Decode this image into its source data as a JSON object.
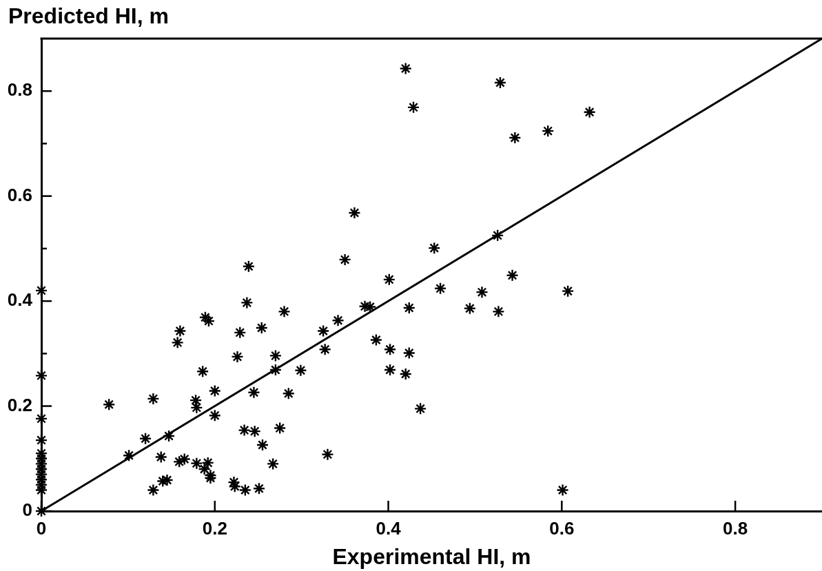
{
  "chart_data": {
    "type": "scatter",
    "xlabel": "Experimental HI, m",
    "ylabel": "Predicted HI, m",
    "xlim": [
      0,
      0.9
    ],
    "ylim": [
      0,
      0.9
    ],
    "xticks": [
      0,
      0.2,
      0.4,
      0.6,
      0.8
    ],
    "yticks": [
      0,
      {
        "value": 0.1,
        "label": null
      },
      0.2,
      {
        "value": 0.3,
        "label": null
      },
      0.4,
      {
        "value": 0.5,
        "label": null
      },
      0.6,
      {
        "value": 0.7,
        "label": null
      },
      0.8
    ],
    "grid": false,
    "legend": false,
    "marker": "cross",
    "series": [
      {
        "type": "scatter",
        "color": "#000000",
        "x": [
          0,
          0,
          0,
          0,
          0,
          0,
          0,
          0,
          0,
          0,
          0,
          0,
          0,
          0.078,
          0.101,
          0.12,
          0.129,
          0.129,
          0.138,
          0.14,
          0.145,
          0.147,
          0.157,
          0.16,
          0.159,
          0.165,
          0.178,
          0.179,
          0.179,
          0.186,
          0.188,
          0.189,
          0.193,
          0.192,
          0.195,
          0.195,
          0.2,
          0.2,
          0.222,
          0.223,
          0.226,
          0.229,
          0.234,
          0.235,
          0.237,
          0.239,
          0.245,
          0.246,
          0.251,
          0.254,
          0.255,
          0.267,
          0.27,
          0.27,
          0.275,
          0.28,
          0.285,
          0.299,
          0.325,
          0.327,
          0.33,
          0.342,
          0.35,
          0.361,
          0.373,
          0.379,
          0.386,
          0.401,
          0.402,
          0.402,
          0.42,
          0.42,
          0.424,
          0.424,
          0.429,
          0.437,
          0.453,
          0.46,
          0.494,
          0.508,
          0.526,
          0.529,
          0.527,
          0.543,
          0.546,
          0.584,
          0.601,
          0.607,
          0.632
        ],
        "values": [
          0.42,
          0.258,
          0.176,
          0.135,
          0.11,
          0.1,
          0.09,
          0.08,
          0.07,
          0.06,
          0.05,
          0.04,
          0,
          0.203,
          0.106,
          0.138,
          0.214,
          0.04,
          0.103,
          0.057,
          0.059,
          0.143,
          0.321,
          0.343,
          0.094,
          0.099,
          0.211,
          0.197,
          0.091,
          0.266,
          0.08,
          0.369,
          0.362,
          0.092,
          0.068,
          0.063,
          0.229,
          0.182,
          0.055,
          0.047,
          0.294,
          0.34,
          0.154,
          0.04,
          0.397,
          0.466,
          0.226,
          0.152,
          0.043,
          0.349,
          0.126,
          0.09,
          0.296,
          0.269,
          0.158,
          0.38,
          0.224,
          0.268,
          0.343,
          0.308,
          0.108,
          0.363,
          0.479,
          0.568,
          0.39,
          0.389,
          0.326,
          0.441,
          0.308,
          0.269,
          0.261,
          0.843,
          0.387,
          0.301,
          0.769,
          0.195,
          0.501,
          0.424,
          0.386,
          0.417,
          0.525,
          0.816,
          0.38,
          0.449,
          0.711,
          0.724,
          0.04,
          0.419,
          0.76
        ]
      },
      {
        "type": "line",
        "color": "#000000",
        "marker": "none",
        "line_style": "solid",
        "x": [
          0,
          0.9
        ],
        "values": [
          0,
          0.9
        ]
      }
    ]
  }
}
